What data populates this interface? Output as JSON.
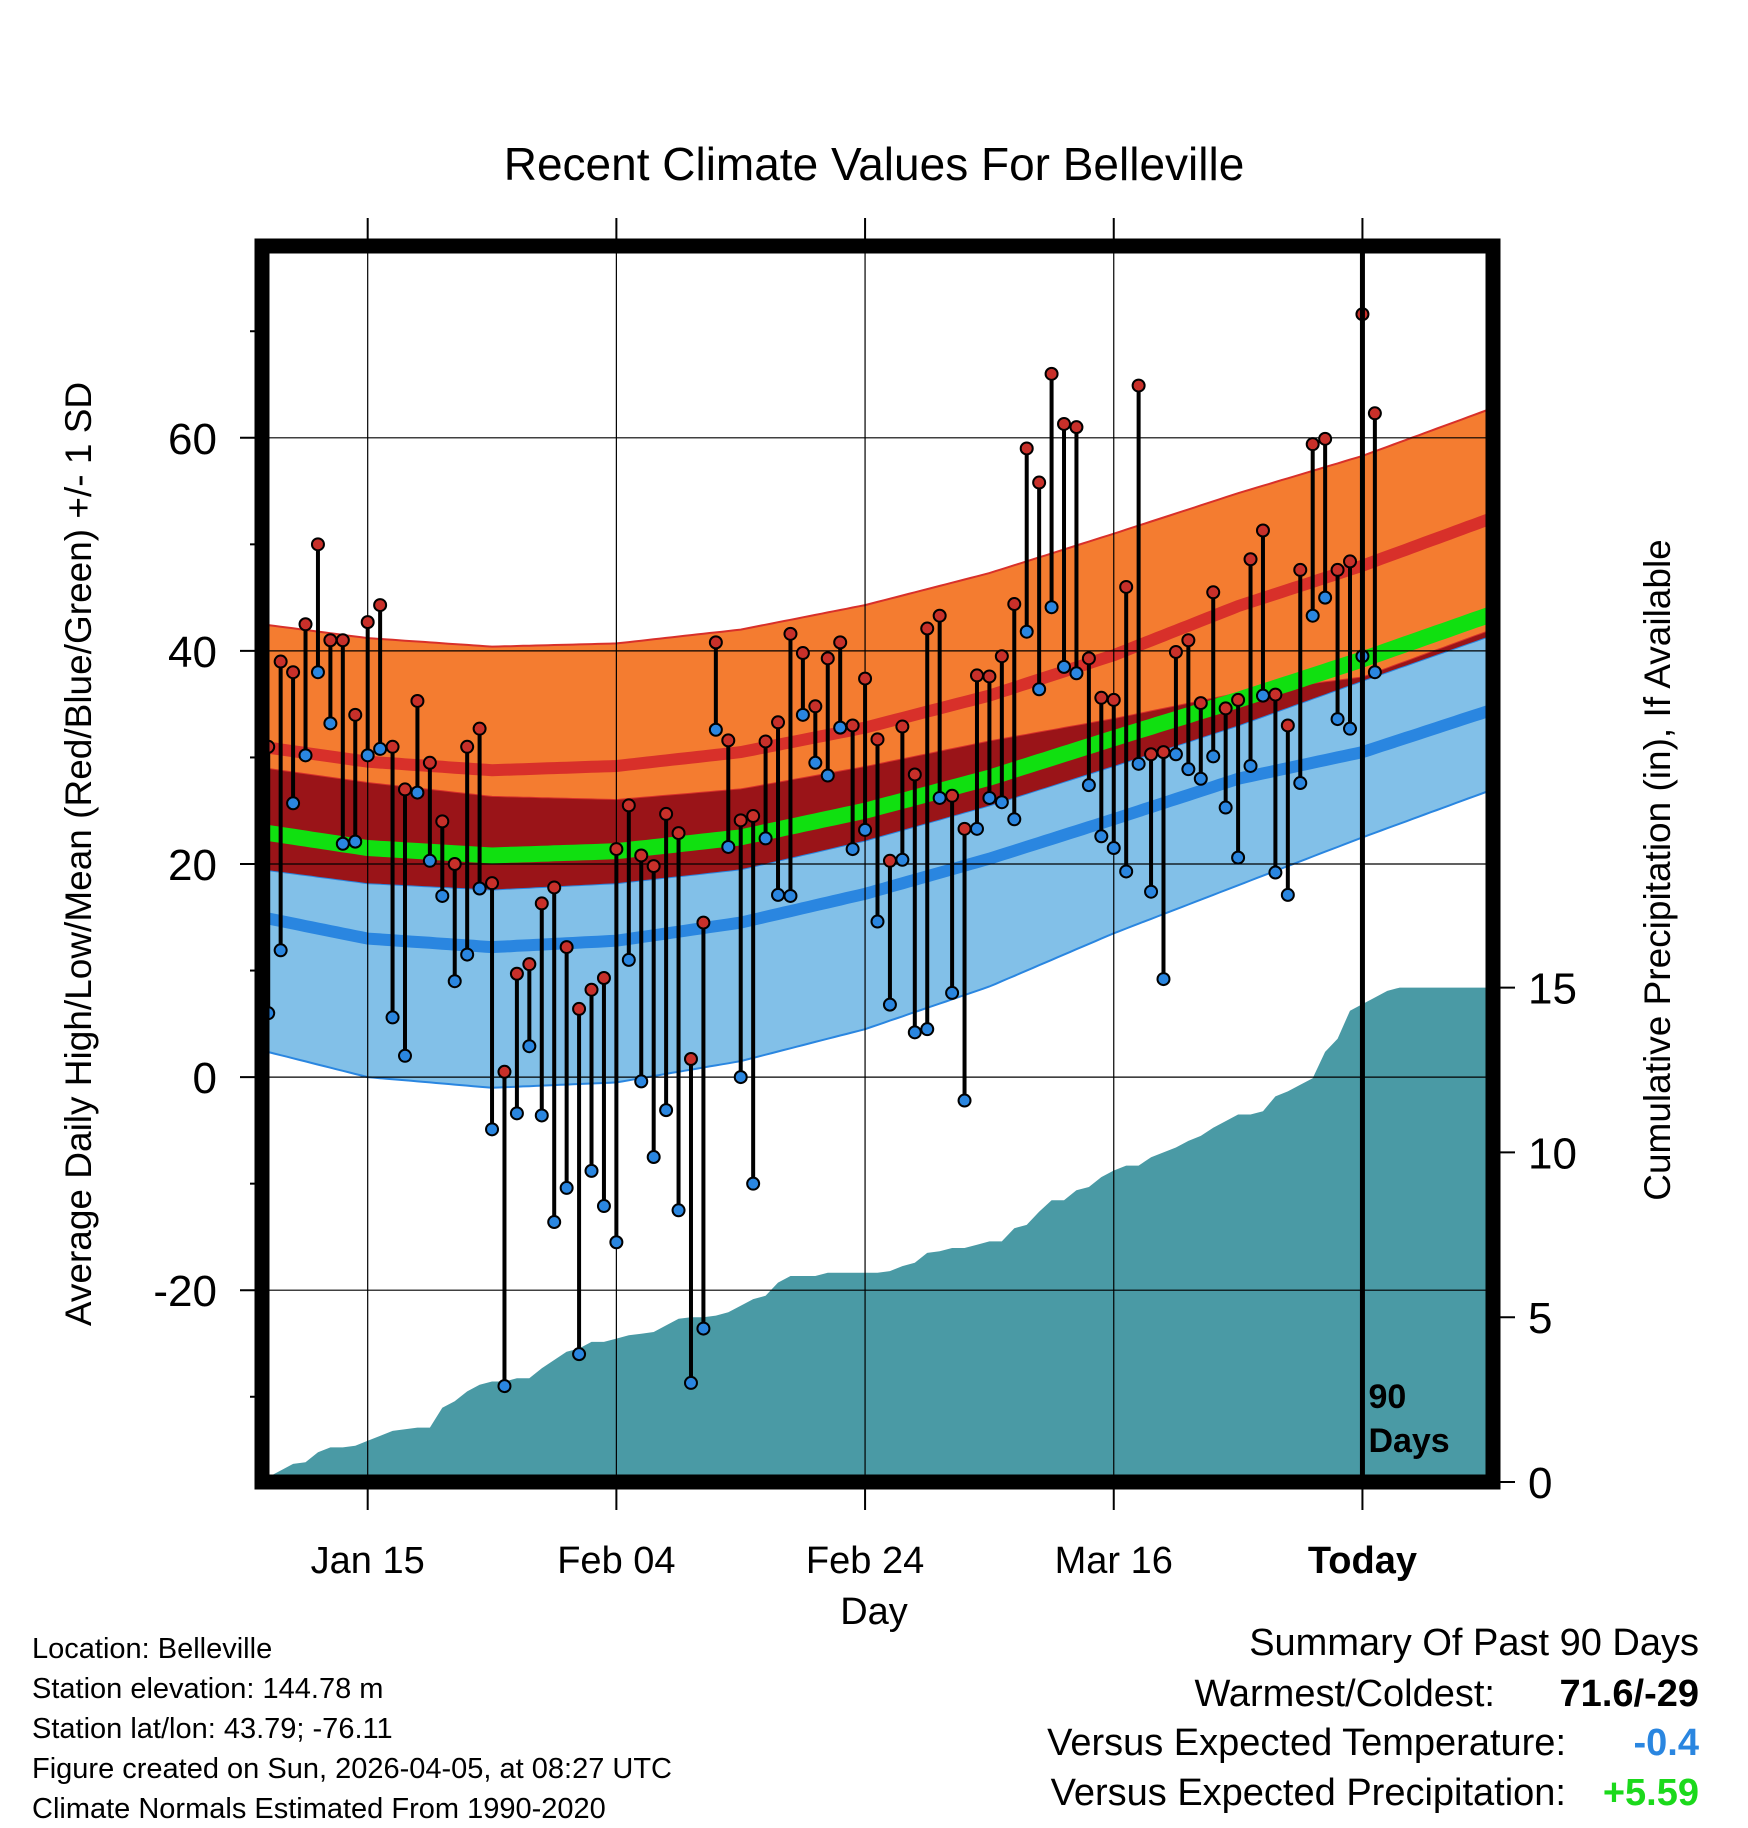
{
  "chart_data": {
    "type": "line",
    "title": "Recent Climate Values For Belleville",
    "xlabel": "Day",
    "ylabel": "Average Daily High/Low/Mean (Red/Blue/Green) +/- 1 SD",
    "y2label": "Cumulative Precipitation (in), If Available",
    "xlim_days": [
      -87.5,
      11.5
    ],
    "ylim": [
      -38,
      78
    ],
    "y2lim": [
      0,
      37.5
    ],
    "yticks": [
      "60",
      "40",
      "20",
      "0",
      "-20"
    ],
    "y2ticks": [
      "15",
      "10",
      "5",
      "0"
    ],
    "xticks": [
      {
        "label": "Jan 15",
        "day": -79
      },
      {
        "label": "Feb 04",
        "day": -59
      },
      {
        "label": "Feb 24",
        "day": -39
      },
      {
        "label": "Mar 16",
        "day": -19
      },
      {
        "label": "Today",
        "day": 1
      }
    ],
    "today_day": 1,
    "today_label": [
      "90",
      "Days"
    ],
    "normals": {
      "days": [
        -87.5,
        -79,
        -69,
        -59,
        -49,
        -39,
        -29,
        -19,
        -9,
        1,
        11.5
      ],
      "high_mean": [
        31,
        29.6,
        28.8,
        29.2,
        30.5,
        32.8,
        35.8,
        39.6,
        44.2,
        48,
        52.5
      ],
      "high_upper": [
        42.5,
        41.2,
        40.4,
        40.7,
        42,
        44.3,
        47.3,
        51,
        54.8,
        58.3,
        62.8
      ],
      "high_lower": [
        29,
        27.6,
        26.3,
        26,
        27,
        29.1,
        31.5,
        33.6,
        36,
        37.5,
        42
      ],
      "low_mean": [
        15,
        13,
        12.2,
        12.8,
        14.5,
        17.2,
        20.5,
        24.2,
        28,
        30.5,
        34.5
      ],
      "low_upper": [
        19.5,
        18.2,
        17.6,
        18.2,
        19.5,
        22.2,
        25.5,
        29.2,
        33,
        37.2,
        41.5
      ],
      "low_lower": [
        2.5,
        0,
        -1,
        -0.5,
        1.5,
        4.5,
        8.5,
        13.5,
        18,
        22.5,
        27
      ],
      "mean_mean": [
        23,
        21.5,
        20.8,
        21.2,
        22.5,
        25,
        28.1,
        31.8,
        35.4,
        39.2,
        43.5
      ]
    },
    "series": [
      {
        "name": "High",
        "color": "#c8302a",
        "values": [
          31,
          39,
          38,
          42.5,
          50,
          41,
          41,
          34,
          42.7,
          44.3,
          31,
          27,
          35.3,
          29.5,
          24,
          20,
          31,
          32.7,
          18.2,
          0.5,
          9.7,
          10.6,
          16.3,
          17.8,
          12.2,
          6.4,
          8.2,
          9.3,
          21.4,
          25.5,
          20.8,
          19.8,
          24.7,
          22.9,
          1.7,
          14.5,
          40.8,
          31.6,
          24.1,
          24.5,
          31.5,
          33.3,
          41.6,
          39.8,
          34.8,
          39.3,
          40.8,
          33,
          37.4,
          31.7,
          20.3,
          32.9,
          28.4,
          42.1,
          43.3,
          26.4,
          23.3,
          37.7,
          37.6,
          39.5,
          44.4,
          59,
          55.8,
          66,
          61.3,
          61,
          39.3,
          35.6,
          35.4,
          46,
          64.9,
          30.3,
          30.5,
          39.9,
          41,
          35.1,
          45.5,
          34.6,
          35.4,
          48.6,
          51.3,
          35.9,
          33,
          47.6,
          59.4,
          59.9,
          47.6,
          48.4,
          71.6,
          62.3
        ]
      },
      {
        "name": "Low",
        "color": "#2a86e0",
        "values": [
          6,
          11.9,
          25.7,
          30.2,
          38,
          33.2,
          21.9,
          22.1,
          30.2,
          30.8,
          5.6,
          2,
          26.7,
          20.3,
          17,
          9,
          11.5,
          17.7,
          -4.9,
          -29,
          -3.4,
          2.9,
          -3.6,
          -13.6,
          -10.4,
          -26,
          -8.8,
          -12.1,
          -15.5,
          11,
          -0.4,
          -7.5,
          -3.1,
          -12.5,
          -28.7,
          -23.6,
          32.6,
          21.6,
          0,
          -10,
          22.4,
          17.1,
          17,
          34,
          29.5,
          28.3,
          32.8,
          21.4,
          23.2,
          14.6,
          6.8,
          20.4,
          4.2,
          4.5,
          26.2,
          7.9,
          -2.2,
          23.3,
          26.2,
          25.8,
          24.2,
          41.8,
          36.4,
          44.1,
          38.5,
          37.9,
          27.4,
          22.6,
          21.5,
          19.3,
          29.4,
          17.4,
          9.2,
          30.3,
          28.9,
          28,
          30.1,
          25.3,
          20.6,
          29.2,
          35.8,
          19.2,
          17.1,
          27.6,
          43.3,
          45,
          33.6,
          32.7,
          39.5,
          38
        ]
      },
      {
        "name": "Cumulative Precipitation",
        "color": "#4a9aa5",
        "values": [
          0,
          0.15,
          0.35,
          0.55,
          0.6,
          0.9,
          1.05,
          1.05,
          1.1,
          1.25,
          1.4,
          1.55,
          1.6,
          1.65,
          1.65,
          2.25,
          2.45,
          2.75,
          2.95,
          3.05,
          3.05,
          3.15,
          3.15,
          3.45,
          3.7,
          3.95,
          4.05,
          4.25,
          4.25,
          4.35,
          4.45,
          4.5,
          4.55,
          4.75,
          4.95,
          5.0,
          5.0,
          5.05,
          5.15,
          5.35,
          5.55,
          5.65,
          6.05,
          6.25,
          6.25,
          6.25,
          6.35,
          6.35,
          6.35,
          6.35,
          6.35,
          6.4,
          6.55,
          6.65,
          6.95,
          7.0,
          7.1,
          7.1,
          7.2,
          7.3,
          7.3,
          7.7,
          7.8,
          8.2,
          8.55,
          8.55,
          8.85,
          8.95,
          9.25,
          9.45,
          9.6,
          9.6,
          9.85,
          10.0,
          10.15,
          10.35,
          10.5,
          10.75,
          10.95,
          11.15,
          11.15,
          11.25,
          11.7,
          11.85,
          12.05,
          12.25,
          13.05,
          13.45,
          14.3,
          14.5,
          14.7,
          14.9,
          15.0,
          15.0,
          15.0,
          15.0,
          15.0,
          15.0,
          15.0,
          15.0
        ]
      }
    ]
  },
  "summary": {
    "heading": "Summary Of Past 90 Days",
    "warmest_coldest_label": "Warmest/Coldest:",
    "warmest_coldest_value": "71.6/-29",
    "temp_label": "Versus Expected Temperature:",
    "temp_value": "-0.4",
    "temp_color": "#2a86e0",
    "precip_label": "Versus Expected Precipitation:",
    "precip_value": "+5.59",
    "precip_color": "#1bd91b"
  },
  "station": {
    "location": "Location: Belleville",
    "elevation": "Station elevation: 144.78 m",
    "latlon": "Station lat/lon: 43.79; -76.11",
    "created": "Figure created on Sun, 2026-04-05, at 08:27 UTC",
    "normals": "Climate Normals Estimated From 1990-2020"
  }
}
